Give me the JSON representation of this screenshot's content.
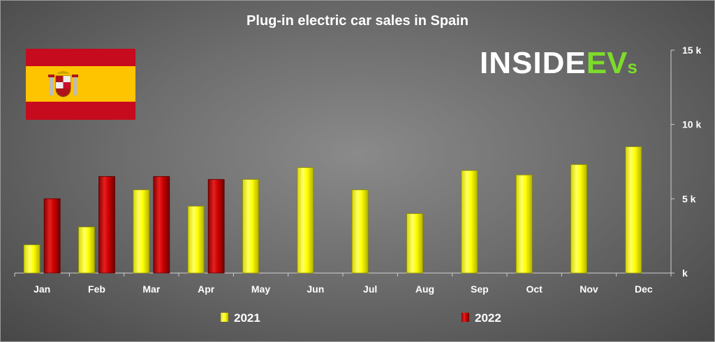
{
  "chart_data": {
    "type": "bar",
    "title": "Plug-in electric car sales in Spain",
    "categories": [
      "Jan",
      "Feb",
      "Mar",
      "Apr",
      "May",
      "Jun",
      "Jul",
      "Aug",
      "Sep",
      "Oct",
      "Nov",
      "Dec"
    ],
    "series": [
      {
        "name": "2021",
        "color": "#ffff00",
        "values": [
          1900,
          3100,
          5600,
          4500,
          6300,
          7100,
          5600,
          4000,
          6900,
          6600,
          7300,
          8500
        ]
      },
      {
        "name": "2022",
        "color": "#cc0000",
        "values": [
          5000,
          6500,
          6500,
          6300,
          null,
          null,
          null,
          null,
          null,
          null,
          null,
          null
        ]
      }
    ],
    "y_axis": {
      "min": 0,
      "max": 15000,
      "ticks": [
        0,
        5000,
        10000,
        15000
      ],
      "tick_labels": [
        "k",
        "5 k",
        "10 k",
        "15 k"
      ],
      "position": "right"
    },
    "xlabel": "",
    "ylabel": "",
    "legend": {
      "position": "bottom",
      "items": [
        "2021",
        "2022"
      ]
    }
  },
  "branding": {
    "logo_part1": "INSIDE",
    "logo_part2": "EV",
    "logo_part3": "s"
  },
  "flag": {
    "country": "Spain",
    "red": "#c60b1e",
    "yellow": "#ffc400"
  }
}
